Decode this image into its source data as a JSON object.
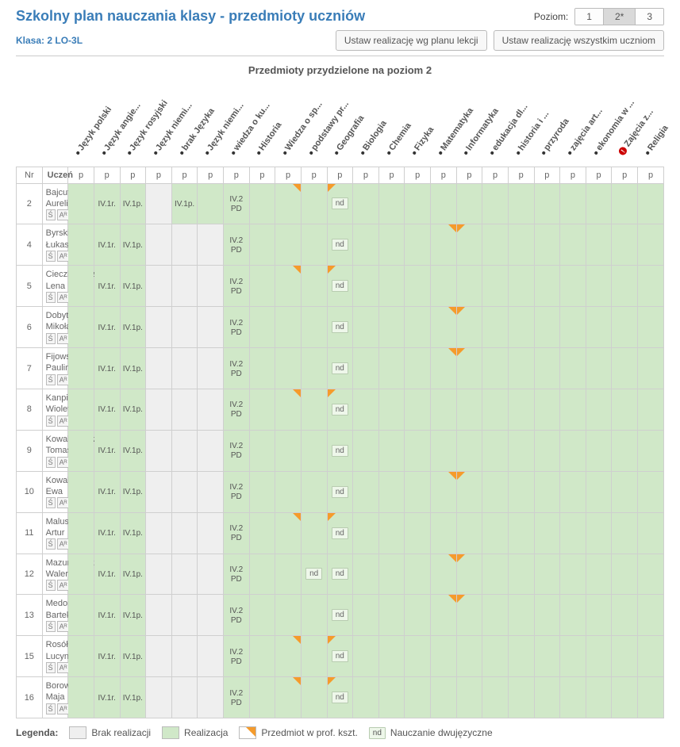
{
  "title": "Szkolny plan nauczania klasy - przedmioty uczniów",
  "klasa_label": "Klasa:",
  "klasa_value": "2 LO-3L",
  "level_label": "Poziom:",
  "levels": [
    "1",
    "2*",
    "3"
  ],
  "active_level": 1,
  "buttons": {
    "set_by_plan": "Ustaw realizację wg planu lekcji",
    "set_all": "Ustaw realizację wszystkim uczniom"
  },
  "table_title": "Przedmioty przydzielone na poziom 2",
  "col_headers": {
    "nr": "Nr",
    "uczen": "Uczeń"
  },
  "subjects": [
    {
      "label": "Język polski"
    },
    {
      "label": "Język angie..."
    },
    {
      "label": "Język rosyjski"
    },
    {
      "label": "Język niemi..."
    },
    {
      "label": "brak Języka"
    },
    {
      "label": "Język niemi..."
    },
    {
      "label": "wiedza o ku..."
    },
    {
      "label": "Historia"
    },
    {
      "label": "Wiedza o sp..."
    },
    {
      "label": "podstawy pr..."
    },
    {
      "label": "Geografia"
    },
    {
      "label": "Biologia"
    },
    {
      "label": "Chemia"
    },
    {
      "label": "Fizyka"
    },
    {
      "label": "Matematyka"
    },
    {
      "label": "Informatyka"
    },
    {
      "label": "edukacja dl..."
    },
    {
      "label": "historia i ..."
    },
    {
      "label": "przyroda"
    },
    {
      "label": "zajęcia art..."
    },
    {
      "label": "ekonomia w ..."
    },
    {
      "label": "Zajęcia z...",
      "warn": true
    },
    {
      "label": "Religia"
    }
  ],
  "p_label": "p",
  "students": [
    {
      "nr": 2,
      "name": "Bajcut Aurelia",
      "brak_gray": false,
      "niemi2_gray": false,
      "wiedza_o_sp_tr": true,
      "podstawy_nd": true,
      "geografia_tl": true,
      "matem_tr": false,
      "inf_tl": false
    },
    {
      "nr": 4,
      "name": "Byrski Łukasz",
      "brak_gray": true,
      "niemi2_gray": true,
      "wiedza_o_sp_tr": false,
      "podstawy_nd": true,
      "geografia_tl": false,
      "matem_tr": true,
      "inf_tl": true
    },
    {
      "nr": 5,
      "name": "Cieczkiewicz Lena",
      "brak_gray": true,
      "niemi2_gray": true,
      "wiedza_o_sp_tr": true,
      "podstawy_nd": true,
      "geografia_tl": true,
      "matem_tr": false,
      "inf_tl": false
    },
    {
      "nr": 6,
      "name": "Dobytek Mikołaj",
      "brak_gray": true,
      "niemi2_gray": true,
      "wiedza_o_sp_tr": false,
      "podstawy_nd": true,
      "geografia_tl": false,
      "matem_tr": true,
      "inf_tl": true
    },
    {
      "nr": 7,
      "name": "Fijowska Paulina",
      "brak_gray": true,
      "niemi2_gray": true,
      "wiedza_o_sp_tr": false,
      "podstawy_nd": true,
      "geografia_tl": false,
      "matem_tr": true,
      "inf_tl": true
    },
    {
      "nr": 8,
      "name": "Kanpik Wioletta",
      "brak_gray": true,
      "niemi2_gray": true,
      "wiedza_o_sp_tr": true,
      "podstawy_nd": true,
      "geografia_tl": true,
      "matem_tr": false,
      "inf_tl": false
    },
    {
      "nr": 9,
      "name": "Kowalkiewicz Tomasz",
      "brak_gray": true,
      "niemi2_gray": true,
      "wiedza_o_sp_tr": false,
      "podstawy_nd": true,
      "geografia_tl": false,
      "matem_tr": false,
      "inf_tl": false
    },
    {
      "nr": 10,
      "name": "Kowalska Ewa",
      "brak_gray": true,
      "niemi2_gray": true,
      "wiedza_o_sp_tr": false,
      "podstawy_nd": true,
      "geografia_tl": false,
      "matem_tr": true,
      "inf_tl": true
    },
    {
      "nr": 11,
      "name": "Maluszek Artur",
      "brak_gray": true,
      "niemi2_gray": true,
      "wiedza_o_sp_tr": true,
      "podstawy_nd": true,
      "geografia_tl": true,
      "matem_tr": false,
      "inf_tl": false
    },
    {
      "nr": 12,
      "name": "Mazurkiewicz Walery",
      "brak_gray": true,
      "niemi2_gray": true,
      "wiedza_o_sp_tr": false,
      "podstawy_nd": true,
      "geografia_tl": false,
      "matem_tr": true,
      "inf_tl": true,
      "extra_nd": true
    },
    {
      "nr": 13,
      "name": "Medoń Bartek",
      "brak_gray": true,
      "niemi2_gray": true,
      "wiedza_o_sp_tr": false,
      "podstawy_nd": true,
      "geografia_tl": false,
      "matem_tr": true,
      "inf_tl": true
    },
    {
      "nr": 15,
      "name": "Rosół Lucyna",
      "brak_gray": true,
      "niemi2_gray": true,
      "wiedza_o_sp_tr": true,
      "podstawy_nd": true,
      "geografia_tl": true,
      "matem_tr": false,
      "inf_tl": false
    },
    {
      "nr": 16,
      "name": "Borowikowa Maja",
      "brak_gray": true,
      "niemi2_gray": true,
      "wiedza_o_sp_tr": true,
      "podstawy_nd": true,
      "geografia_tl": true,
      "matem_tr": false,
      "inf_tl": false
    }
  ],
  "cell_values": {
    "ang": "IV.1r.",
    "ros": "IV.1p.",
    "niemi1": "IV.1p.",
    "wiedza_ku": "IV.2 PD"
  },
  "nd_label": "nd",
  "badges": {
    "s": "Ś",
    "a": "Aᴿ"
  },
  "legend": {
    "title": "Legenda:",
    "brak": "Brak realizacji",
    "real": "Realizacja",
    "prof": "Przedmiot w prof. kszt.",
    "nd": "Nauczanie dwujęzyczne"
  },
  "colors": {
    "green": "#d0e8c8",
    "gray": "#efefef",
    "orange": "#f59b2c"
  }
}
